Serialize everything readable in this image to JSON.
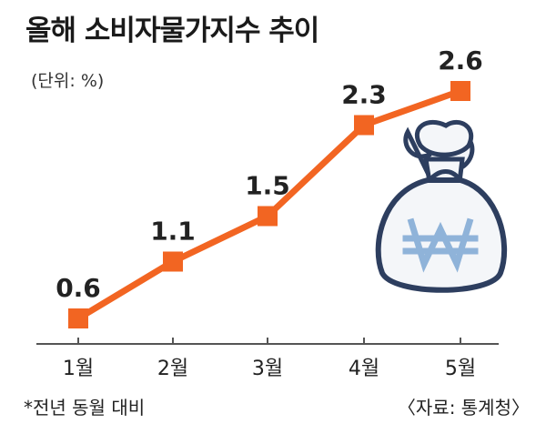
{
  "title": "올해 소비자물가지수 추이",
  "unit_label": "(단위: %)",
  "footnote": "*전년 동월 대비",
  "source": "〈자료: 통계청〉",
  "icon": "money-bag-won-icon",
  "colors": {
    "line": "#f26522",
    "marker": "#f26522",
    "bag_fill": "#f4f6f9",
    "bag_stroke": "#2d3e5f",
    "won": "#8fb3d9"
  },
  "chart_data": {
    "type": "line",
    "categories": [
      "1월",
      "2월",
      "3월",
      "4월",
      "5월"
    ],
    "values": [
      0.6,
      1.1,
      1.5,
      2.3,
      2.6
    ],
    "data_labels": [
      "0.6",
      "1.1",
      "1.5",
      "2.3",
      "2.6"
    ],
    "title": "올해 소비자물가지수 추이",
    "ylabel": "(단위: %)",
    "ylim": [
      0.5,
      2.75
    ],
    "grid": false,
    "legend": "none"
  }
}
